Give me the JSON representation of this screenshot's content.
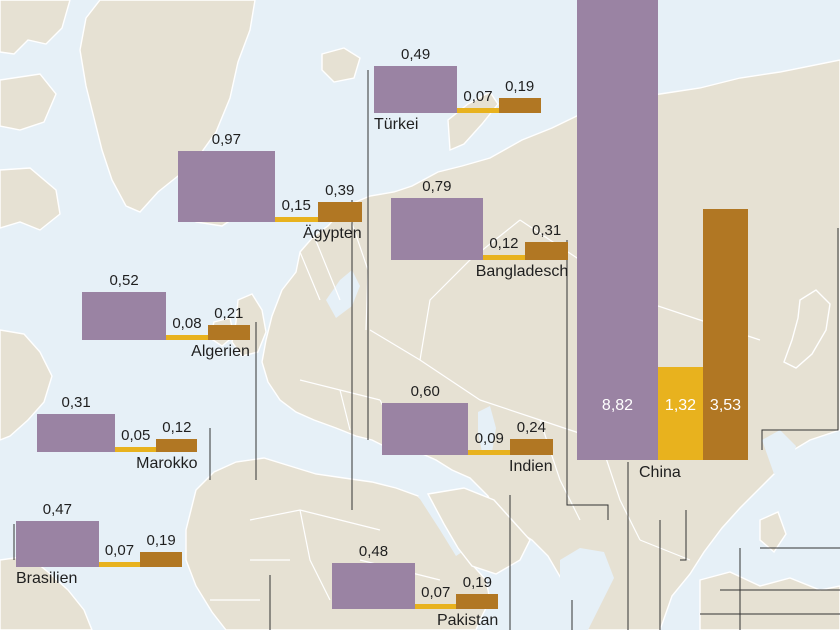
{
  "colors": {
    "series_a": "#9a83a3",
    "series_b": "#e8b21e",
    "series_c": "#b17723",
    "water": "#e6f0f7",
    "land": "#e6e1d3"
  },
  "countries": [
    {
      "key": "tuerkei",
      "name": "Türkei",
      "values": [
        "0,49",
        "0,07",
        "0,19"
      ]
    },
    {
      "key": "aegypten",
      "name": "Ägypten",
      "values": [
        "0,97",
        "0,15",
        "0,39"
      ]
    },
    {
      "key": "bangladesch",
      "name": "Bangladesch",
      "values": [
        "0,79",
        "0,12",
        "0,31"
      ]
    },
    {
      "key": "algerien",
      "name": "Algerien",
      "values": [
        "0,52",
        "0,08",
        "0,21"
      ]
    },
    {
      "key": "marokko",
      "name": "Marokko",
      "values": [
        "0,31",
        "0,05",
        "0,12"
      ]
    },
    {
      "key": "indien",
      "name": "Indien",
      "values": [
        "0,60",
        "0,09",
        "0,24"
      ]
    },
    {
      "key": "brasilien",
      "name": "Brasilien",
      "values": [
        "0,47",
        "0,07",
        "0,19"
      ]
    },
    {
      "key": "pakistan",
      "name": "Pakistan",
      "values": [
        "0,48",
        "0,07",
        "0,19"
      ]
    },
    {
      "key": "china",
      "name": "China",
      "values": [
        "8,82",
        "1,32",
        "3,53"
      ]
    }
  ]
}
